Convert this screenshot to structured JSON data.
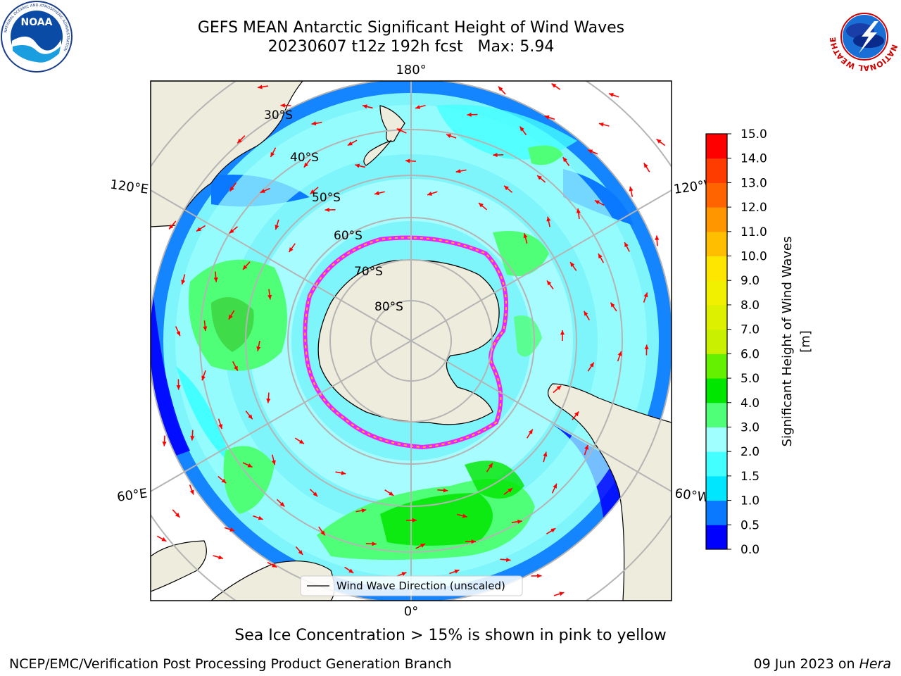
{
  "header": {
    "title_line1": "GEFS MEAN Antarctic Significant Height of Wind Waves",
    "title_line2": "20230607 t12z 192h fcst   Max: 5.94"
  },
  "logos": {
    "left": {
      "name": "noaa-logo",
      "ring_text": "NATIONAL OCEANIC AND ATMOSPHERIC ADMINISTRATION",
      "bottom_text": "U.S. DEPARTMENT OF COMMERCE",
      "center_text": "NOAA"
    },
    "right": {
      "name": "nws-logo",
      "ring_text": "NATIONAL WEATHER SERVICE"
    }
  },
  "map": {
    "projection": "south-polar-stereographic",
    "longitude_labels": {
      "top": "180°",
      "bottom": "0°",
      "left_upper": "120°E",
      "left_lower": "60°E",
      "right_upper": "120°W",
      "right_lower": "60°W"
    },
    "latitude_labels": [
      "30°S",
      "40°S",
      "50°S",
      "60°S",
      "70°S",
      "80°S"
    ],
    "legend": {
      "label": "Wind Wave Direction (unscaled)"
    },
    "colors": {
      "land": "#eeecdc",
      "arrow": "#ff0000",
      "grid": "#b4b4b4",
      "ice_edge": "#ff00ff"
    }
  },
  "colorbar": {
    "label": "Significant Height of Wind Waves [m]",
    "ticks": [
      "0.0",
      "0.5",
      "1.0",
      "1.5",
      "2.0",
      "3.0",
      "4.0",
      "5.0",
      "6.0",
      "7.0",
      "8.0",
      "9.0",
      "10.0",
      "11.0",
      "12.0",
      "13.0",
      "14.0",
      "15.0"
    ],
    "colors": [
      "#0000ff",
      "#0a78ff",
      "#00e6ff",
      "#44ffff",
      "#a0ffff",
      "#50ff78",
      "#00e600",
      "#64f000",
      "#c8f000",
      "#dcf000",
      "#f0f000",
      "#ffe600",
      "#ffbe00",
      "#ff9600",
      "#ff6400",
      "#ff3c00",
      "#ff0000"
    ]
  },
  "captions": {
    "sea_ice": "Sea Ice Concentration > 15% is shown in pink to yellow"
  },
  "footer": {
    "left": "NCEP/EMC/Verification Post Processing Product Generation Branch",
    "right_prefix": "09 Jun 2023 on ",
    "right_host": "Hera"
  }
}
